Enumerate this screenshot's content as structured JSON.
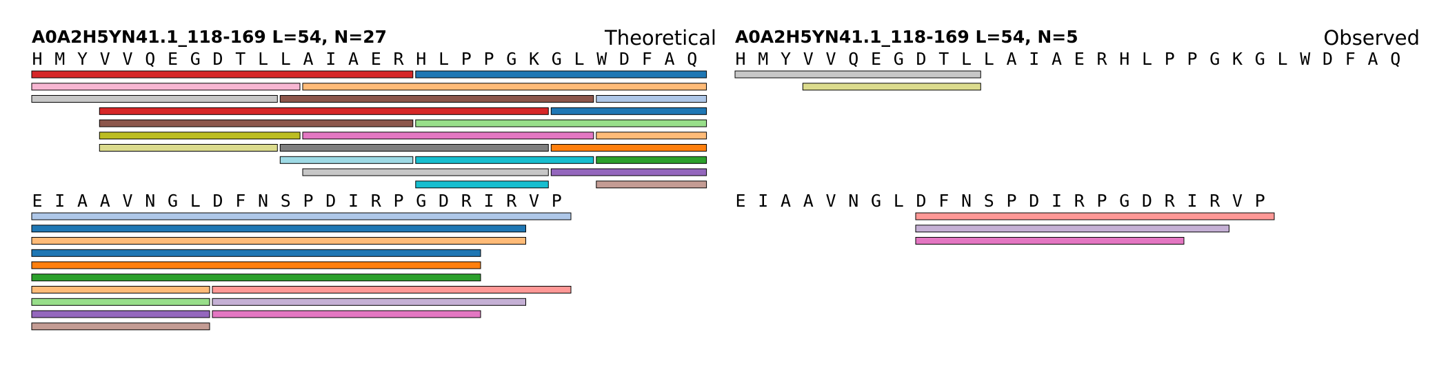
{
  "colors": {
    "red": "#d62728",
    "blue": "#1f77b4",
    "pink_light": "#f7b6d2",
    "orange_light": "#ffbb78",
    "gray_light": "#c7c7c7",
    "brown": "#8c564b",
    "blue_light": "#aec7e8",
    "green_light": "#98df8a",
    "olive": "#bcbd22",
    "magenta": "#e377c2",
    "olive_light": "#dbdb8d",
    "gray": "#7f7f7f",
    "orange": "#ff7f0e",
    "cyan_light": "#9edae5",
    "cyan": "#17becf",
    "green": "#2ca02c",
    "purple": "#9467bd",
    "brown_light": "#c49c94",
    "red_light": "#ff9896",
    "purple_light": "#c5b0d5"
  },
  "panels": [
    {
      "title": "A0A2H5YN41.1_118-169  L=54, N=27",
      "mode_label": "Theoretical",
      "blocks": [
        {
          "start": 1,
          "residues": [
            "H",
            "M",
            "Y",
            "V",
            "V",
            "Q",
            "E",
            "G",
            "D",
            "T",
            "L",
            "L",
            "A",
            "I",
            "A",
            "E",
            "R",
            "H",
            "L",
            "P",
            "P",
            "G",
            "K",
            "G",
            "L",
            "W",
            "D",
            "F",
            "A",
            "Q"
          ],
          "peptides": [
            {
              "start": 1,
              "end": 17,
              "row": 0,
              "color": "red"
            },
            {
              "start": 18,
              "end": 30,
              "row": 0,
              "color": "blue"
            },
            {
              "start": 1,
              "end": 12,
              "row": 1,
              "color": "pink_light"
            },
            {
              "start": 13,
              "end": 30,
              "row": 1,
              "color": "orange_light"
            },
            {
              "start": 1,
              "end": 11,
              "row": 2,
              "color": "gray_light"
            },
            {
              "start": 12,
              "end": 25,
              "row": 2,
              "color": "brown"
            },
            {
              "start": 26,
              "end": 30,
              "row": 2,
              "color": "blue_light"
            },
            {
              "start": 4,
              "end": 23,
              "row": 3,
              "color": "red"
            },
            {
              "start": 24,
              "end": 30,
              "row": 3,
              "color": "blue"
            },
            {
              "start": 4,
              "end": 17,
              "row": 4,
              "color": "brown"
            },
            {
              "start": 18,
              "end": 30,
              "row": 4,
              "color": "green_light"
            },
            {
              "start": 4,
              "end": 12,
              "row": 5,
              "color": "olive"
            },
            {
              "start": 13,
              "end": 25,
              "row": 5,
              "color": "magenta"
            },
            {
              "start": 26,
              "end": 30,
              "row": 5,
              "color": "orange_light"
            },
            {
              "start": 4,
              "end": 11,
              "row": 6,
              "color": "olive_light"
            },
            {
              "start": 12,
              "end": 23,
              "row": 6,
              "color": "gray"
            },
            {
              "start": 24,
              "end": 30,
              "row": 6,
              "color": "orange"
            },
            {
              "start": 12,
              "end": 17,
              "row": 7,
              "color": "cyan_light"
            },
            {
              "start": 18,
              "end": 25,
              "row": 7,
              "color": "cyan"
            },
            {
              "start": 26,
              "end": 30,
              "row": 7,
              "color": "green"
            },
            {
              "start": 13,
              "end": 23,
              "row": 8,
              "color": "gray_light"
            },
            {
              "start": 24,
              "end": 30,
              "row": 8,
              "color": "purple"
            },
            {
              "start": 18,
              "end": 23,
              "row": 9,
              "color": "cyan"
            },
            {
              "start": 26,
              "end": 30,
              "row": 9,
              "color": "brown_light"
            }
          ]
        },
        {
          "start": 31,
          "residues": [
            "E",
            "I",
            "A",
            "A",
            "V",
            "N",
            "G",
            "L",
            "D",
            "F",
            "N",
            "S",
            "P",
            "D",
            "I",
            "R",
            "P",
            "G",
            "D",
            "R",
            "I",
            "R",
            "V",
            "P"
          ],
          "peptides": [
            {
              "start": 31,
              "end": 54,
              "row": 0,
              "color": "blue_light"
            },
            {
              "start": 31,
              "end": 52,
              "row": 1,
              "color": "blue"
            },
            {
              "start": 31,
              "end": 52,
              "row": 2,
              "color": "orange_light"
            },
            {
              "start": 31,
              "end": 50,
              "row": 3,
              "color": "blue"
            },
            {
              "start": 31,
              "end": 50,
              "row": 4,
              "color": "orange"
            },
            {
              "start": 31,
              "end": 50,
              "row": 5,
              "color": "green"
            },
            {
              "start": 31,
              "end": 38,
              "row": 6,
              "color": "orange_light"
            },
            {
              "start": 39,
              "end": 54,
              "row": 6,
              "color": "red_light"
            },
            {
              "start": 31,
              "end": 38,
              "row": 7,
              "color": "green_light"
            },
            {
              "start": 39,
              "end": 52,
              "row": 7,
              "color": "purple_light"
            },
            {
              "start": 31,
              "end": 38,
              "row": 8,
              "color": "purple"
            },
            {
              "start": 39,
              "end": 50,
              "row": 8,
              "color": "magenta"
            },
            {
              "start": 31,
              "end": 38,
              "row": 9,
              "color": "brown_light"
            }
          ]
        }
      ]
    },
    {
      "title": "A0A2H5YN41.1_118-169  L=54, N=5",
      "mode_label": "Observed",
      "blocks": [
        {
          "start": 1,
          "residues": [
            "H",
            "M",
            "Y",
            "V",
            "V",
            "Q",
            "E",
            "G",
            "D",
            "T",
            "L",
            "L",
            "A",
            "I",
            "A",
            "E",
            "R",
            "H",
            "L",
            "P",
            "P",
            "G",
            "K",
            "G",
            "L",
            "W",
            "D",
            "F",
            "A",
            "Q"
          ],
          "peptides": [
            {
              "start": 1,
              "end": 11,
              "row": 0,
              "color": "gray_light"
            },
            {
              "start": 4,
              "end": 11,
              "row": 1,
              "color": "olive_light"
            }
          ]
        },
        {
          "start": 31,
          "residues": [
            "E",
            "I",
            "A",
            "A",
            "V",
            "N",
            "G",
            "L",
            "D",
            "F",
            "N",
            "S",
            "P",
            "D",
            "I",
            "R",
            "P",
            "G",
            "D",
            "R",
            "I",
            "R",
            "V",
            "P"
          ],
          "peptides": [
            {
              "start": 39,
              "end": 54,
              "row": 0,
              "color": "red_light"
            },
            {
              "start": 39,
              "end": 52,
              "row": 1,
              "color": "purple_light"
            },
            {
              "start": 39,
              "end": 50,
              "row": 2,
              "color": "magenta"
            }
          ]
        }
      ]
    }
  ]
}
